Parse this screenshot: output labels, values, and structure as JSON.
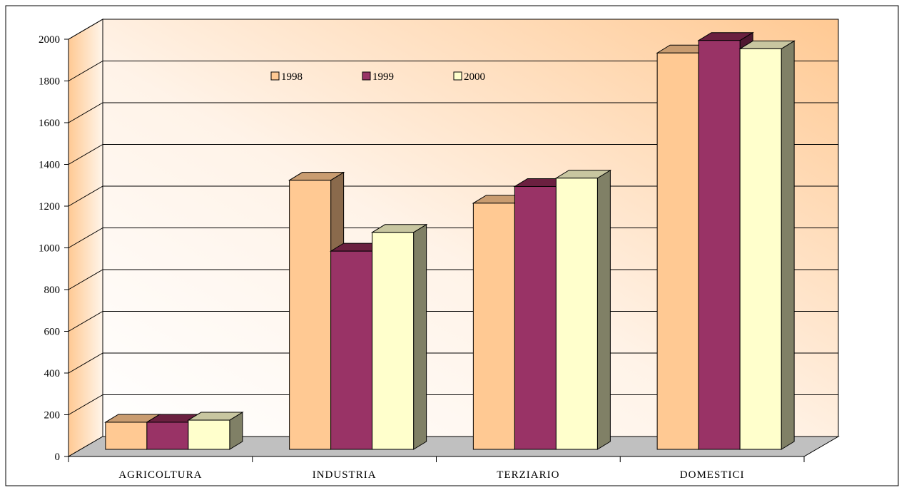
{
  "chart_data": {
    "type": "bar",
    "categories": [
      "AGRICOLTURA",
      "INDUSTRIA",
      "TERZIARIO",
      "DOMESTICI"
    ],
    "series": [
      {
        "name": "1998",
        "values": [
          130,
          1290,
          1180,
          1900
        ],
        "color": "#ffc993",
        "top": "#c99c70",
        "side": "#8a6a4c"
      },
      {
        "name": "1999",
        "values": [
          130,
          950,
          1260,
          1960
        ],
        "color": "#993366",
        "top": "#6b2040",
        "side": "#4e1730"
      },
      {
        "name": "2000",
        "values": [
          140,
          1040,
          1300,
          1920
        ],
        "color": "#ffffcc",
        "top": "#c8c6a0",
        "side": "#808066"
      }
    ],
    "y_ticks": [
      "0",
      "200",
      "400",
      "600",
      "800",
      "1000",
      "1200",
      "1400",
      "1600",
      "1800",
      "2000"
    ],
    "ylim": [
      0,
      2000
    ],
    "grid": true,
    "legend_position": "top-center",
    "colors": {
      "wall_light": "#ffffff",
      "wall_dark": "#ffc993",
      "floor": "#c0c0c0",
      "border": "#000000"
    }
  }
}
